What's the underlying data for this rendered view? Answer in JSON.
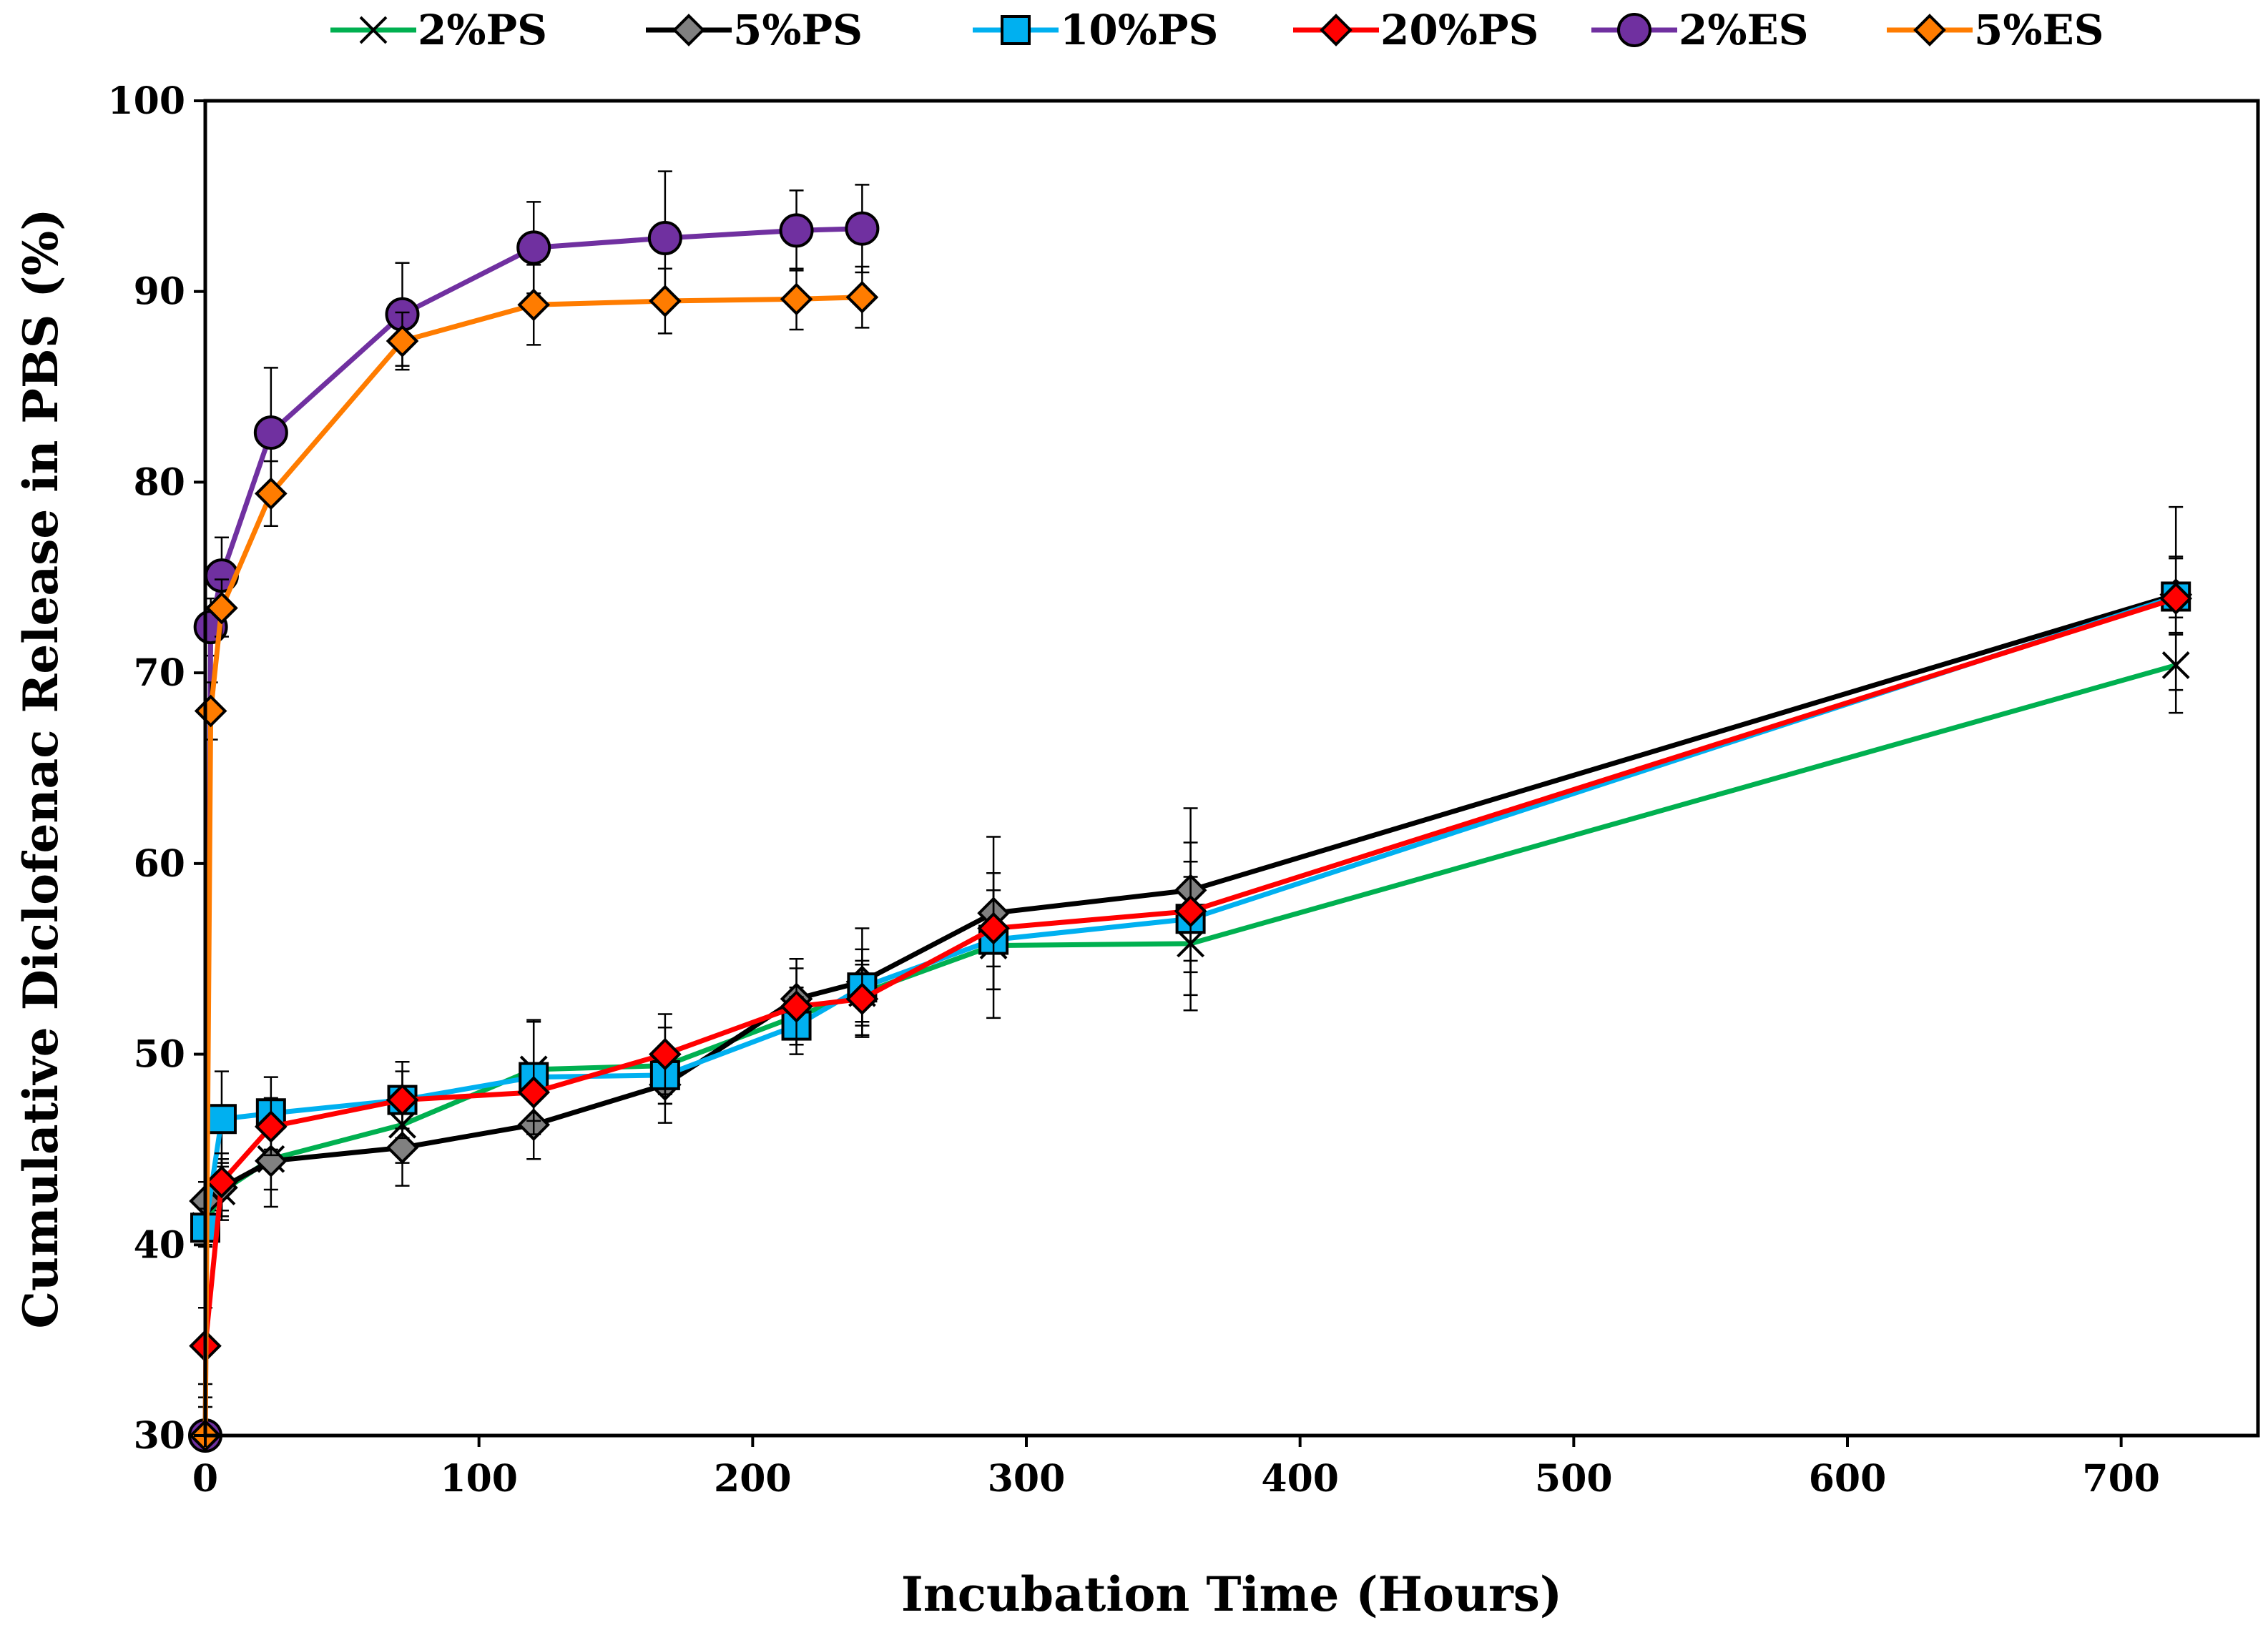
{
  "chart_data": {
    "type": "line",
    "title": "",
    "xlabel": "Incubation Time (Hours)",
    "ylabel": "Cumulative Diclofenac Release in PBS (%)",
    "xlim": [
      0,
      750
    ],
    "ylim": [
      30,
      100
    ],
    "xticks": [
      0,
      100,
      200,
      300,
      400,
      500,
      600,
      700
    ],
    "yticks": [
      30,
      40,
      50,
      60,
      70,
      80,
      90,
      100
    ],
    "grid": false,
    "legend_position": "top",
    "series": [
      {
        "name": "2%PS",
        "color": "#00b050",
        "marker": "x",
        "x": [
          0,
          6,
          24,
          72,
          120,
          168,
          216,
          240,
          288,
          360,
          720
        ],
        "y": [
          41.0,
          42.8,
          44.5,
          46.3,
          49.2,
          49.4,
          52.0,
          53.2,
          55.7,
          55.8,
          70.4
        ],
        "err": [
          1.0,
          1.5,
          2.5,
          2.0,
          2.5,
          2.0,
          1.5,
          1.5,
          3.8,
          3.5,
          2.5
        ]
      },
      {
        "name": "5%PS",
        "color": "#000000",
        "marker": "diamond",
        "marker_color": "#808080",
        "x": [
          0,
          6,
          24,
          72,
          120,
          168,
          216,
          240,
          288,
          360,
          720
        ],
        "y": [
          42.3,
          43.0,
          44.4,
          45.1,
          46.3,
          48.4,
          52.9,
          53.8,
          57.4,
          58.6,
          74.1
        ],
        "err": [
          1.0,
          1.5,
          1.5,
          2.0,
          1.8,
          2.0,
          2.1,
          2.8,
          4.0,
          4.3,
          2.0
        ]
      },
      {
        "name": "10%PS",
        "color": "#00b0f0",
        "marker": "square",
        "x": [
          0,
          6,
          24,
          72,
          120,
          168,
          216,
          240,
          288,
          360,
          720
        ],
        "y": [
          40.9,
          46.6,
          46.9,
          47.6,
          48.8,
          48.9,
          51.5,
          53.5,
          56.0,
          57.1,
          74.0
        ],
        "err": [
          1.0,
          2.5,
          1.9,
          2.0,
          3.0,
          1.5,
          1.5,
          2.0,
          2.6,
          4.0,
          2.0
        ]
      },
      {
        "name": "20%PS",
        "color": "#ff0000",
        "marker": "diamond",
        "x": [
          0,
          6,
          24,
          72,
          120,
          168,
          216,
          240,
          288,
          360,
          720
        ],
        "y": [
          34.7,
          43.3,
          46.2,
          47.6,
          48.0,
          50.0,
          52.5,
          52.9,
          56.6,
          57.5,
          73.9
        ],
        "err": [
          2.0,
          1.5,
          1.5,
          1.5,
          1.5,
          2.1,
          2.0,
          2.0,
          2.0,
          2.6,
          4.8
        ]
      },
      {
        "name": "2%ES",
        "color": "#7030a0",
        "marker": "circle",
        "x": [
          0,
          2,
          6,
          24,
          72,
          120,
          168,
          216,
          240
        ],
        "y": [
          30.0,
          72.4,
          75.1,
          82.6,
          88.8,
          92.3,
          92.8,
          93.2,
          93.3
        ],
        "err": [
          1.5,
          1.5,
          2.0,
          3.4,
          2.7,
          2.4,
          3.5,
          2.1,
          2.3
        ]
      },
      {
        "name": "5%ES",
        "color": "#ff7c00",
        "marker": "diamond",
        "x": [
          0,
          2,
          6,
          24,
          72,
          120,
          168,
          216,
          240
        ],
        "y": [
          30.0,
          68.0,
          73.4,
          79.4,
          87.4,
          89.3,
          89.5,
          89.6,
          89.7
        ],
        "err": [
          2.0,
          1.5,
          1.5,
          1.7,
          1.5,
          2.1,
          1.7,
          1.6,
          1.6
        ]
      }
    ]
  }
}
